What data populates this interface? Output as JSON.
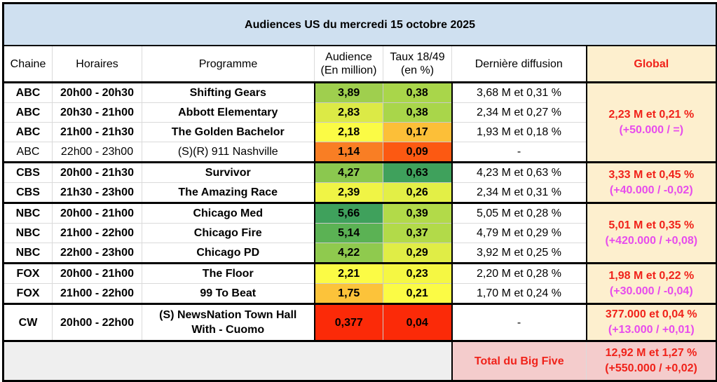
{
  "title": "Audiences US du mercredi 15 octobre 2025",
  "headers": {
    "chaine": "Chaine",
    "horaires": "Horaires",
    "programme": "Programme",
    "audience_l1": "Audience",
    "audience_l2": "(En million)",
    "taux_l1": "Taux 18/49",
    "taux_l2": "(en %)",
    "derniere": "Dernière diffusion",
    "global": "Global"
  },
  "groups": [
    {
      "network": "ABC",
      "global_main": "2,23 M et 0,21 %",
      "global_change": "(+50.000 / =)",
      "rows": [
        {
          "chaine": "ABC",
          "horaires": "20h00 - 20h30",
          "programme": "Shifting Gears",
          "audience": "3,89",
          "taux": "0,38",
          "derniere": "3,68 M et 0,31 %",
          "bold": true,
          "aud_color": "#9fcf4e",
          "taux_color": "#a9d64a"
        },
        {
          "chaine": "ABC",
          "horaires": "20h30 - 21h00",
          "programme": "Abbott Elementary",
          "audience": "2,83",
          "taux": "0,38",
          "derniere": "2,34 M et 0,27 %",
          "bold": true,
          "aud_color": "#dcea46",
          "taux_color": "#a9d64a"
        },
        {
          "chaine": "ABC",
          "horaires": "21h00 - 21h30",
          "programme": "The Golden Bachelor",
          "audience": "2,18",
          "taux": "0,17",
          "derniere": "1,93 M et 0,18 %",
          "bold": true,
          "aud_color": "#fbfb45",
          "taux_color": "#fcbf38"
        },
        {
          "chaine": "ABC",
          "horaires": "22h00 - 23h00",
          "programme": "(S)(R) 911 Nashville",
          "audience": "1,14",
          "taux": "0,09",
          "derniere": "-",
          "bold": false,
          "aud_color": "#f97e24",
          "taux_color": "#fc5912"
        }
      ]
    },
    {
      "network": "CBS",
      "global_main": "3,33 M et 0,45 %",
      "global_change": "(+40.000 / -0,02)",
      "rows": [
        {
          "chaine": "CBS",
          "horaires": "20h00 - 21h30",
          "programme": "Survivor",
          "audience": "4,27",
          "taux": "0,63",
          "derniere": "4,23 M et 0,63 %",
          "bold": true,
          "aud_color": "#8bc84f",
          "taux_color": "#3fa15c"
        },
        {
          "chaine": "CBS",
          "horaires": "21h30 - 23h00",
          "programme": "The Amazing Race",
          "audience": "2,39",
          "taux": "0,26",
          "derniere": "2,34 M et 0,31 %",
          "bold": true,
          "aud_color": "#f0f445",
          "taux_color": "#e3ef46"
        }
      ]
    },
    {
      "network": "NBC",
      "global_main": "5,01 M et 0,35 %",
      "global_change": "(+420.000 / +0,08)",
      "rows": [
        {
          "chaine": "NBC",
          "horaires": "20h00 - 21h00",
          "programme": "Chicago Med",
          "audience": "5,66",
          "taux": "0,39",
          "derniere": "5,05 M et 0,28 %",
          "bold": true,
          "aud_color": "#3fa15c",
          "taux_color": "#b2da49"
        },
        {
          "chaine": "NBC",
          "horaires": "21h00 - 22h00",
          "programme": "Chicago Fire",
          "audience": "5,14",
          "taux": "0,37",
          "derniere": "4,79 M et 0,29 %",
          "bold": true,
          "aud_color": "#5bb254",
          "taux_color": "#b2da49"
        },
        {
          "chaine": "NBC",
          "horaires": "22h00 - 23h00",
          "programme": "Chicago PD",
          "audience": "4,22",
          "taux": "0,29",
          "derniere": "3,92 M et 0,25 %",
          "bold": true,
          "aud_color": "#8fca4e",
          "taux_color": "#e0ed46"
        }
      ]
    },
    {
      "network": "FOX",
      "global_main": "1,98 M et 0,22 %",
      "global_change": "(+30.000 / -0,04)",
      "rows": [
        {
          "chaine": "FOX",
          "horaires": "20h00 - 21h00",
          "programme": "The Floor",
          "audience": "2,21",
          "taux": "0,23",
          "derniere": "2,20 M et 0,28 %",
          "bold": true,
          "aud_color": "#fbfb45",
          "taux_color": "#f5f743"
        },
        {
          "chaine": "FOX",
          "horaires": "21h00 - 22h00",
          "programme": "99 To Beat",
          "audience": "1,75",
          "taux": "0,21",
          "derniere": "1,70 M et 0,24 %",
          "bold": true,
          "aud_color": "#fcc33a",
          "taux_color": "#fbfb45"
        }
      ]
    },
    {
      "network": "CW",
      "global_main": "377.000 et 0,04 %",
      "global_change": "(+13.000 / +0,01)",
      "rows": [
        {
          "chaine": "CW",
          "horaires": "20h00 - 22h00",
          "programme_l1": "(S) NewsNation Town Hall",
          "programme_l2": "With - Cuomo",
          "audience": "0,377",
          "taux": "0,04",
          "derniere": "-",
          "bold": true,
          "aud_color": "#fb2a08",
          "taux_color": "#fb2a08"
        }
      ]
    }
  ],
  "total": {
    "label": "Total du Big Five",
    "value_main": "12,92 M et 1,27 %",
    "value_change": "(+550.000 / +0,02)"
  },
  "colors": {
    "title_bg": "#cfe0f0",
    "global_bg": "#fdefce",
    "global_main_text": "#f0221a",
    "global_change_text": "#e74ced",
    "total_bg": "#f4cccc",
    "footer_gray": "#efefef"
  }
}
